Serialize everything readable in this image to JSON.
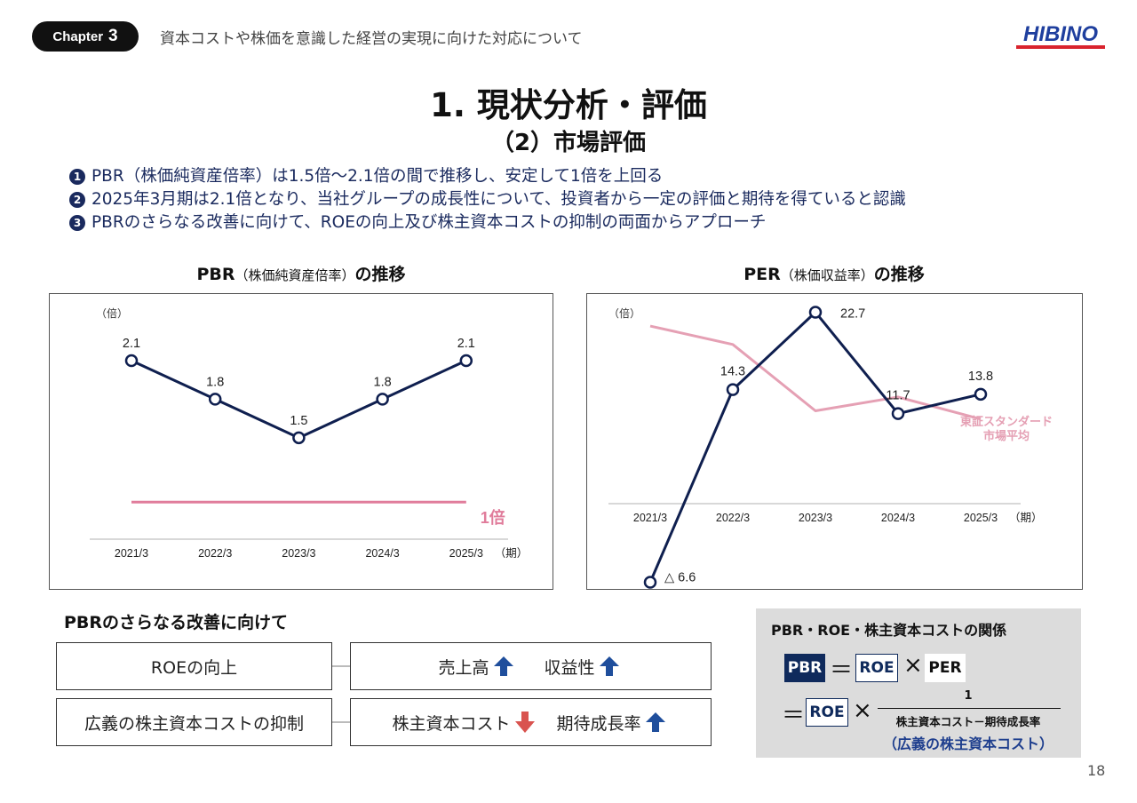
{
  "header": {
    "chapter_label": "Chapter",
    "chapter_number": "3",
    "title": "資本コストや株価を意識した経営の実現に向けた対応について",
    "logo_text": "HIBINO"
  },
  "main_title": "1. 現状分析・評価",
  "sub_title": "（2）市場評価",
  "bullets": [
    {
      "num": "1",
      "text": "PBR（株価純資産倍率）は1.5倍～2.1倍の間で推移し、安定して1倍を上回る"
    },
    {
      "num": "2",
      "text": "2025年3月期は2.1倍となり、当社グループの成長性について、投資者から一定の評価と期待を得ていると認識"
    },
    {
      "num": "3",
      "text": "PBRのさらなる改善に向けて、ROEの向上及び株主資本コストの抑制の両面からアプローチ"
    }
  ],
  "pbr_chart_title": {
    "main": "PBR",
    "paren": "（株価純資産倍率）",
    "suffix": "の推移"
  },
  "per_chart_title": {
    "main": "PER",
    "paren": "（株価収益率）",
    "suffix": "の推移"
  },
  "chart_data": [
    {
      "type": "line",
      "x": [
        "2021/3",
        "2022/3",
        "2023/3",
        "2024/3",
        "2025/3"
      ],
      "ylabel": "（倍）",
      "xlabel": "（期）",
      "ylim": [
        0,
        2.3
      ],
      "series": [
        {
          "values": [
            2.1,
            1.8,
            1.5,
            1.8,
            2.1
          ],
          "labels": [
            "2.1",
            "1.8",
            "1.5",
            "1.8",
            "2.1"
          ],
          "color": "#0f1f4f"
        }
      ],
      "reference_lines": [
        {
          "value": 1.0,
          "label": "1倍",
          "color": "#e07c9b"
        }
      ],
      "grid": false
    },
    {
      "type": "line",
      "x": [
        "2021/3",
        "2022/3",
        "2023/3",
        "2024/3",
        "2025/3"
      ],
      "ylabel": "（倍）",
      "xlabel": "（期）",
      "ylim": [
        -8,
        24
      ],
      "series": [
        {
          "values": [
            -6.6,
            14.3,
            22.7,
            11.7,
            13.8
          ],
          "labels": [
            "△ 6.6",
            "14.3",
            "22.7",
            "11.7",
            "13.8"
          ],
          "color": "#0f1f4f"
        },
        {
          "name": "東証スタンダード市場平均",
          "name_lines": [
            "東証スタンダード",
            "市場平均"
          ],
          "values": [
            21.2,
            19.2,
            12.0,
            13.5,
            11.1
          ],
          "color": "#e5a0b4"
        }
      ],
      "grid": false
    }
  ],
  "improve": {
    "title": "PBRのさらなる改善に向けて",
    "rows": [
      {
        "left": "ROEの向上",
        "right_a": "売上高",
        "right_a_dir": "up",
        "right_b": "収益性",
        "right_b_dir": "up"
      },
      {
        "left": "広義の株主資本コストの抑制",
        "right_a": "株主資本コスト",
        "right_a_dir": "down",
        "right_b": "期待成長率",
        "right_b_dir": "up"
      }
    ]
  },
  "relation": {
    "title": "PBR・ROE・株主資本コストの関係",
    "pbr": "PBR",
    "roe": "ROE",
    "per": "PER",
    "eq": "＝",
    "times": "×",
    "numerator": "1",
    "denominator": "株主資本コスト－期待成長率",
    "note": "（広義の株主資本コスト）"
  },
  "colors": {
    "navy": "#0f1f4f",
    "pink": "#e07c9b",
    "pink_light": "#e5a0b4",
    "arrow_blue": "#1f4e9c",
    "arrow_red": "#d9534f"
  },
  "page_number": "18"
}
